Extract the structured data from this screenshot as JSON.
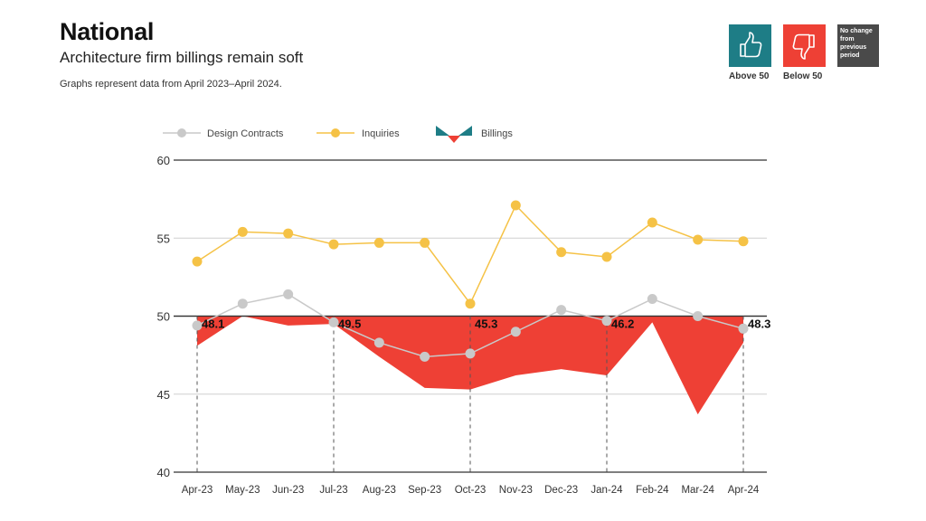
{
  "header": {
    "title": "National",
    "subtitle": "Architecture firm billings remain soft",
    "note": "Graphs represent data from April 2023–April 2024."
  },
  "key": {
    "above": {
      "label": "Above 50",
      "color": "#1e7d86",
      "icon": "thumbs-up-icon"
    },
    "below": {
      "label": "Below 50",
      "color": "#ee4035",
      "icon": "thumbs-down-icon"
    },
    "no_change": {
      "label": "No change from previous period",
      "color": "#4a4a4a"
    }
  },
  "chart_data": {
    "type": "line",
    "title": "National",
    "categories": [
      "Apr-23",
      "May-23",
      "Jun-23",
      "Jul-23",
      "Aug-23",
      "Sep-23",
      "Oct-23",
      "Nov-23",
      "Dec-23",
      "Jan-24",
      "Feb-24",
      "Mar-24",
      "Apr-24"
    ],
    "ylim": [
      40,
      60
    ],
    "yticks": [
      40,
      45,
      50,
      55,
      60
    ],
    "baseline": 50,
    "grid": true,
    "legend_position": "top-left",
    "series": [
      {
        "name": "Design Contracts",
        "type": "line",
        "color": "#c9c9c9",
        "values": [
          49.4,
          50.8,
          51.4,
          49.6,
          48.3,
          47.4,
          47.6,
          49.0,
          50.4,
          49.7,
          51.1,
          50.0,
          49.2
        ]
      },
      {
        "name": "Inquiries",
        "type": "line",
        "color": "#f5c246",
        "values": [
          53.5,
          55.4,
          55.3,
          54.6,
          54.7,
          54.7,
          50.8,
          57.1,
          54.1,
          53.8,
          56.0,
          54.9,
          54.8
        ]
      },
      {
        "name": "Billings",
        "type": "area",
        "color_below": "#ee4035",
        "color_above": "#1e7d86",
        "values": [
          48.1,
          50.0,
          49.4,
          49.5,
          47.4,
          45.4,
          45.3,
          46.2,
          46.6,
          46.2,
          49.6,
          43.7,
          48.3
        ]
      }
    ],
    "annotations": [
      {
        "category": "Apr-23",
        "label": "48.1"
      },
      {
        "category": "Jul-23",
        "label": "49.5"
      },
      {
        "category": "Oct-23",
        "label": "45.3"
      },
      {
        "category": "Jan-24",
        "label": "46.2"
      },
      {
        "category": "Apr-24",
        "label": "48.3"
      }
    ]
  }
}
